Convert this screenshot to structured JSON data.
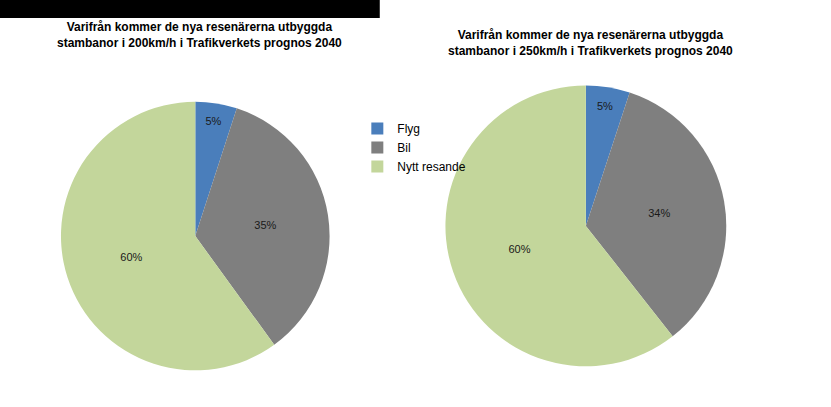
{
  "chart_data": [
    {
      "type": "pie",
      "title": "Varifrån kommer de nya resenärerna utbyggda\nstambanor i 200km/h i Trafikverkets prognos 2040",
      "categories": [
        "Flyg",
        "Bil",
        "Nytt resande"
      ],
      "values": [
        5,
        35,
        60
      ],
      "value_labels": [
        "5%",
        "35%",
        "60%"
      ],
      "colors": [
        "#4a7ebb",
        "#7f7f7f",
        "#c3d69b"
      ],
      "data_labels": true,
      "legend": "right"
    },
    {
      "type": "pie",
      "title": "Varifrån kommer de nya resenärerna utbyggda\nstambanor i 250km/h i Trafikverkets prognos 2040",
      "categories": [
        "Flyg",
        "Bil",
        "Nytt resande"
      ],
      "values": [
        5,
        34,
        60
      ],
      "value_labels": [
        "5%",
        "34%",
        "60%"
      ],
      "colors": [
        "#4a7ebb",
        "#7f7f7f",
        "#c3d69b"
      ],
      "data_labels": true,
      "legend": "right"
    }
  ]
}
